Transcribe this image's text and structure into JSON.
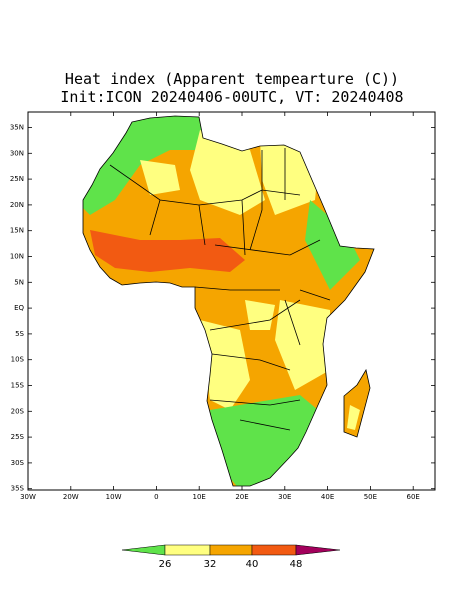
{
  "header": {
    "title": "Heat index (Apparent tempearture (C))",
    "subtitle": "Init:ICON 20240406-00UTC, VT: 20240408"
  },
  "map": {
    "lat_labels": [
      "35N",
      "30N",
      "25N",
      "20N",
      "15N",
      "10N",
      "5N",
      "EQ",
      "5S",
      "10S",
      "15S",
      "20S",
      "25S",
      "30S",
      "35S"
    ],
    "lon_labels": [
      "30W",
      "20W",
      "10W",
      "0",
      "10E",
      "20E",
      "30E",
      "40E",
      "50E",
      "60E"
    ]
  },
  "colorbar": {
    "colors": [
      "#5fe34a",
      "#ffff80",
      "#f5a500",
      "#f25a12",
      "#a3005c"
    ],
    "labels": [
      26,
      32,
      40,
      48
    ]
  }
}
